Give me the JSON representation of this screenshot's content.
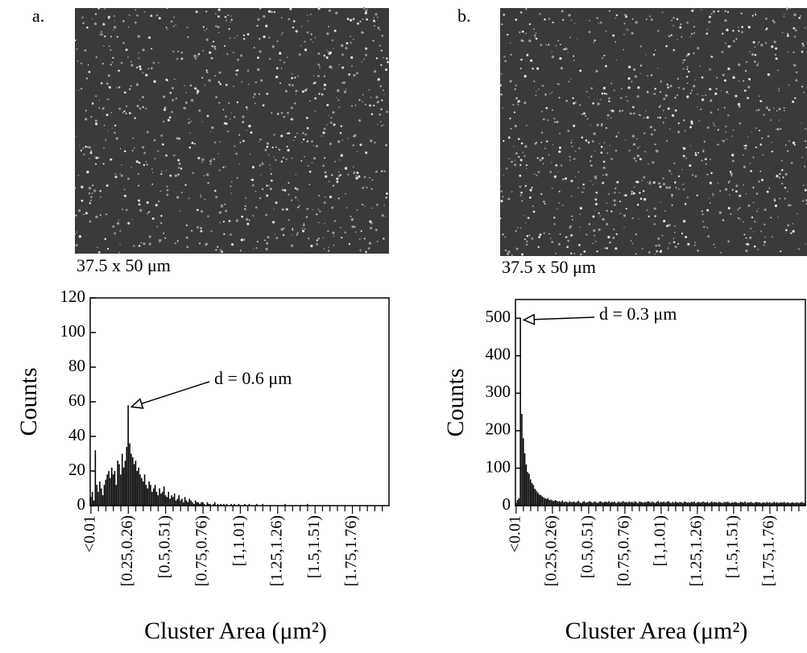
{
  "chart_data": [
    {
      "type": "bar",
      "panel": "a.",
      "image_caption": "37.5 x 50 μm",
      "annotation": "d = 0.6 μm",
      "y_label": "Counts",
      "x_label": "Cluster Area (μm²)",
      "color": "#000000",
      "ylim": [
        0,
        120
      ],
      "yticks": [
        0,
        20,
        40,
        60,
        80,
        100,
        120
      ],
      "categories": [
        "<0.01",
        null,
        null,
        null,
        null,
        null,
        null,
        null,
        null,
        null,
        null,
        null,
        null,
        null,
        null,
        null,
        null,
        null,
        null,
        null,
        null,
        null,
        null,
        null,
        null,
        "[0.25,0.26)",
        null,
        null,
        null,
        null,
        null,
        null,
        null,
        null,
        null,
        null,
        null,
        null,
        null,
        null,
        null,
        null,
        null,
        null,
        null,
        null,
        null,
        null,
        null,
        null,
        "[0.5,0.51)",
        null,
        null,
        null,
        null,
        null,
        null,
        null,
        null,
        null,
        null,
        null,
        null,
        null,
        null,
        null,
        null,
        null,
        null,
        null,
        null,
        null,
        null,
        null,
        null,
        "[0.75,0.76)",
        null,
        null,
        null,
        null,
        null,
        null,
        null,
        null,
        null,
        null,
        null,
        null,
        null,
        null,
        null,
        null,
        null,
        null,
        null,
        null,
        null,
        null,
        null,
        null,
        "[1,1.01)",
        null,
        null,
        null,
        null,
        null,
        null,
        null,
        null,
        null,
        null,
        null,
        null,
        null,
        null,
        null,
        null,
        null,
        null,
        null,
        null,
        null,
        null,
        null,
        null,
        "[1.25,1.26)",
        null,
        null,
        null,
        null,
        null,
        null,
        null,
        null,
        null,
        null,
        null,
        null,
        null,
        null,
        null,
        null,
        null,
        null,
        null,
        null,
        null,
        null,
        null,
        null,
        "[1.5,1.51)",
        null,
        null,
        null,
        null,
        null,
        null,
        null,
        null,
        null,
        null,
        null,
        null,
        null,
        null,
        null,
        null,
        null,
        null,
        null,
        null,
        null,
        null,
        null,
        null,
        "[1.75,1.76)",
        null,
        null,
        null,
        null,
        null,
        null,
        null,
        null,
        null,
        null,
        null,
        null,
        null,
        null,
        null,
        null,
        null,
        null,
        null,
        null,
        null,
        null,
        null,
        null
      ],
      "values": [
        5,
        8,
        3,
        32,
        12,
        8,
        14,
        10,
        6,
        12,
        15,
        18,
        20,
        16,
        22,
        18,
        20,
        12,
        26,
        24,
        18,
        30,
        22,
        26,
        34,
        58,
        36,
        30,
        28,
        24,
        26,
        20,
        22,
        18,
        16,
        14,
        18,
        12,
        10,
        14,
        12,
        8,
        10,
        12,
        8,
        6,
        10,
        7,
        8,
        11,
        6,
        5,
        8,
        4,
        6,
        5,
        7,
        3,
        4,
        6,
        3,
        4,
        2,
        5,
        3,
        2,
        4,
        3,
        2,
        1,
        3,
        2,
        2,
        1,
        2,
        2,
        1,
        0,
        2,
        1,
        1,
        0,
        1,
        2,
        0,
        1,
        0,
        1,
        0,
        1,
        0,
        1,
        0,
        0,
        1,
        0,
        1,
        0,
        0,
        1,
        0,
        0,
        0,
        1,
        0,
        0,
        1,
        0,
        0,
        0,
        0,
        1,
        0,
        0,
        0,
        1,
        0,
        0,
        0,
        0,
        0,
        0,
        0,
        0,
        0,
        0,
        0,
        0,
        0,
        0,
        1,
        0,
        0,
        0,
        0,
        0,
        0,
        0,
        0,
        0,
        0,
        0,
        0,
        0,
        0,
        1,
        0,
        0,
        0,
        0,
        0,
        0,
        0,
        0,
        0,
        0,
        0,
        0,
        0,
        0,
        0,
        0,
        0,
        0,
        0,
        0,
        0,
        0,
        0,
        0,
        0,
        0,
        0,
        0,
        0,
        0,
        0,
        0,
        0,
        0,
        0,
        0,
        0,
        0,
        0,
        0,
        0,
        0,
        0,
        0,
        0,
        0,
        0,
        0,
        0,
        0,
        0,
        0,
        0,
        0
      ]
    },
    {
      "type": "bar",
      "panel": "b.",
      "image_caption": "37.5 x 50 μm",
      "annotation": "d = 0.3 μm",
      "y_label": "Counts",
      "x_label": "Cluster Area (μm²)",
      "color": "#000000",
      "ylim": [
        0,
        550
      ],
      "yticks": [
        0,
        100,
        200,
        300,
        400,
        500
      ],
      "categories": [
        "<0.01",
        null,
        null,
        null,
        null,
        null,
        null,
        null,
        null,
        null,
        null,
        null,
        null,
        null,
        null,
        null,
        null,
        null,
        null,
        null,
        null,
        null,
        null,
        null,
        null,
        "[0.25,0.26)",
        null,
        null,
        null,
        null,
        null,
        null,
        null,
        null,
        null,
        null,
        null,
        null,
        null,
        null,
        null,
        null,
        null,
        null,
        null,
        null,
        null,
        null,
        null,
        null,
        "[0.5,0.51)",
        null,
        null,
        null,
        null,
        null,
        null,
        null,
        null,
        null,
        null,
        null,
        null,
        null,
        null,
        null,
        null,
        null,
        null,
        null,
        null,
        null,
        null,
        null,
        null,
        "[0.75,0.76)",
        null,
        null,
        null,
        null,
        null,
        null,
        null,
        null,
        null,
        null,
        null,
        null,
        null,
        null,
        null,
        null,
        null,
        null,
        null,
        null,
        null,
        null,
        null,
        null,
        "[1,1.01)",
        null,
        null,
        null,
        null,
        null,
        null,
        null,
        null,
        null,
        null,
        null,
        null,
        null,
        null,
        null,
        null,
        null,
        null,
        null,
        null,
        null,
        null,
        null,
        null,
        "[1.25,1.26)",
        null,
        null,
        null,
        null,
        null,
        null,
        null,
        null,
        null,
        null,
        null,
        null,
        null,
        null,
        null,
        null,
        null,
        null,
        null,
        null,
        null,
        null,
        null,
        null,
        "[1.5,1.51)",
        null,
        null,
        null,
        null,
        null,
        null,
        null,
        null,
        null,
        null,
        null,
        null,
        null,
        null,
        null,
        null,
        null,
        null,
        null,
        null,
        null,
        null,
        null,
        null,
        "[1.75,1.76)",
        null,
        null,
        null,
        null,
        null,
        null,
        null,
        null,
        null,
        null,
        null,
        null,
        null,
        null,
        null,
        null,
        null,
        null,
        null,
        null,
        null,
        null,
        null,
        null
      ],
      "values": [
        8,
        15,
        20,
        500,
        245,
        180,
        140,
        110,
        90,
        85,
        70,
        60,
        55,
        45,
        40,
        35,
        30,
        28,
        25,
        22,
        20,
        18,
        20,
        15,
        16,
        14,
        12,
        15,
        13,
        11,
        12,
        10,
        14,
        9,
        11,
        10,
        8,
        12,
        9,
        10,
        11,
        8,
        10,
        13,
        9,
        7,
        10,
        12,
        8,
        9,
        10,
        12,
        9,
        8,
        11,
        10,
        7,
        9,
        12,
        10,
        8,
        10,
        11,
        9,
        12,
        8,
        10,
        9,
        11,
        7,
        9,
        11,
        8,
        10,
        12,
        9,
        10,
        8,
        11,
        9,
        10,
        8,
        12,
        9,
        7,
        11,
        10,
        9,
        8,
        10,
        9,
        12,
        10,
        8,
        11,
        9,
        7,
        10,
        12,
        8,
        10,
        9,
        11,
        8,
        10,
        12,
        9,
        7,
        10,
        8,
        11,
        9,
        8,
        10,
        9,
        7,
        11,
        10,
        8,
        9,
        8,
        10,
        9,
        11,
        7,
        9,
        10,
        8,
        9,
        11,
        9,
        8,
        10,
        7,
        9,
        11,
        8,
        10,
        9,
        8,
        10,
        9,
        7,
        8,
        10,
        9,
        11,
        8,
        7,
        9,
        8,
        10,
        9,
        7,
        8,
        10,
        9,
        8,
        11,
        7,
        9,
        8,
        10,
        8,
        7,
        9,
        10,
        8,
        9,
        7,
        8,
        9,
        7,
        10,
        8,
        9,
        7,
        8,
        10,
        8,
        9,
        7,
        8,
        9,
        8,
        10,
        7,
        9,
        8,
        7,
        8,
        9,
        7,
        8,
        9,
        7,
        8,
        10,
        8,
        7
      ]
    }
  ]
}
